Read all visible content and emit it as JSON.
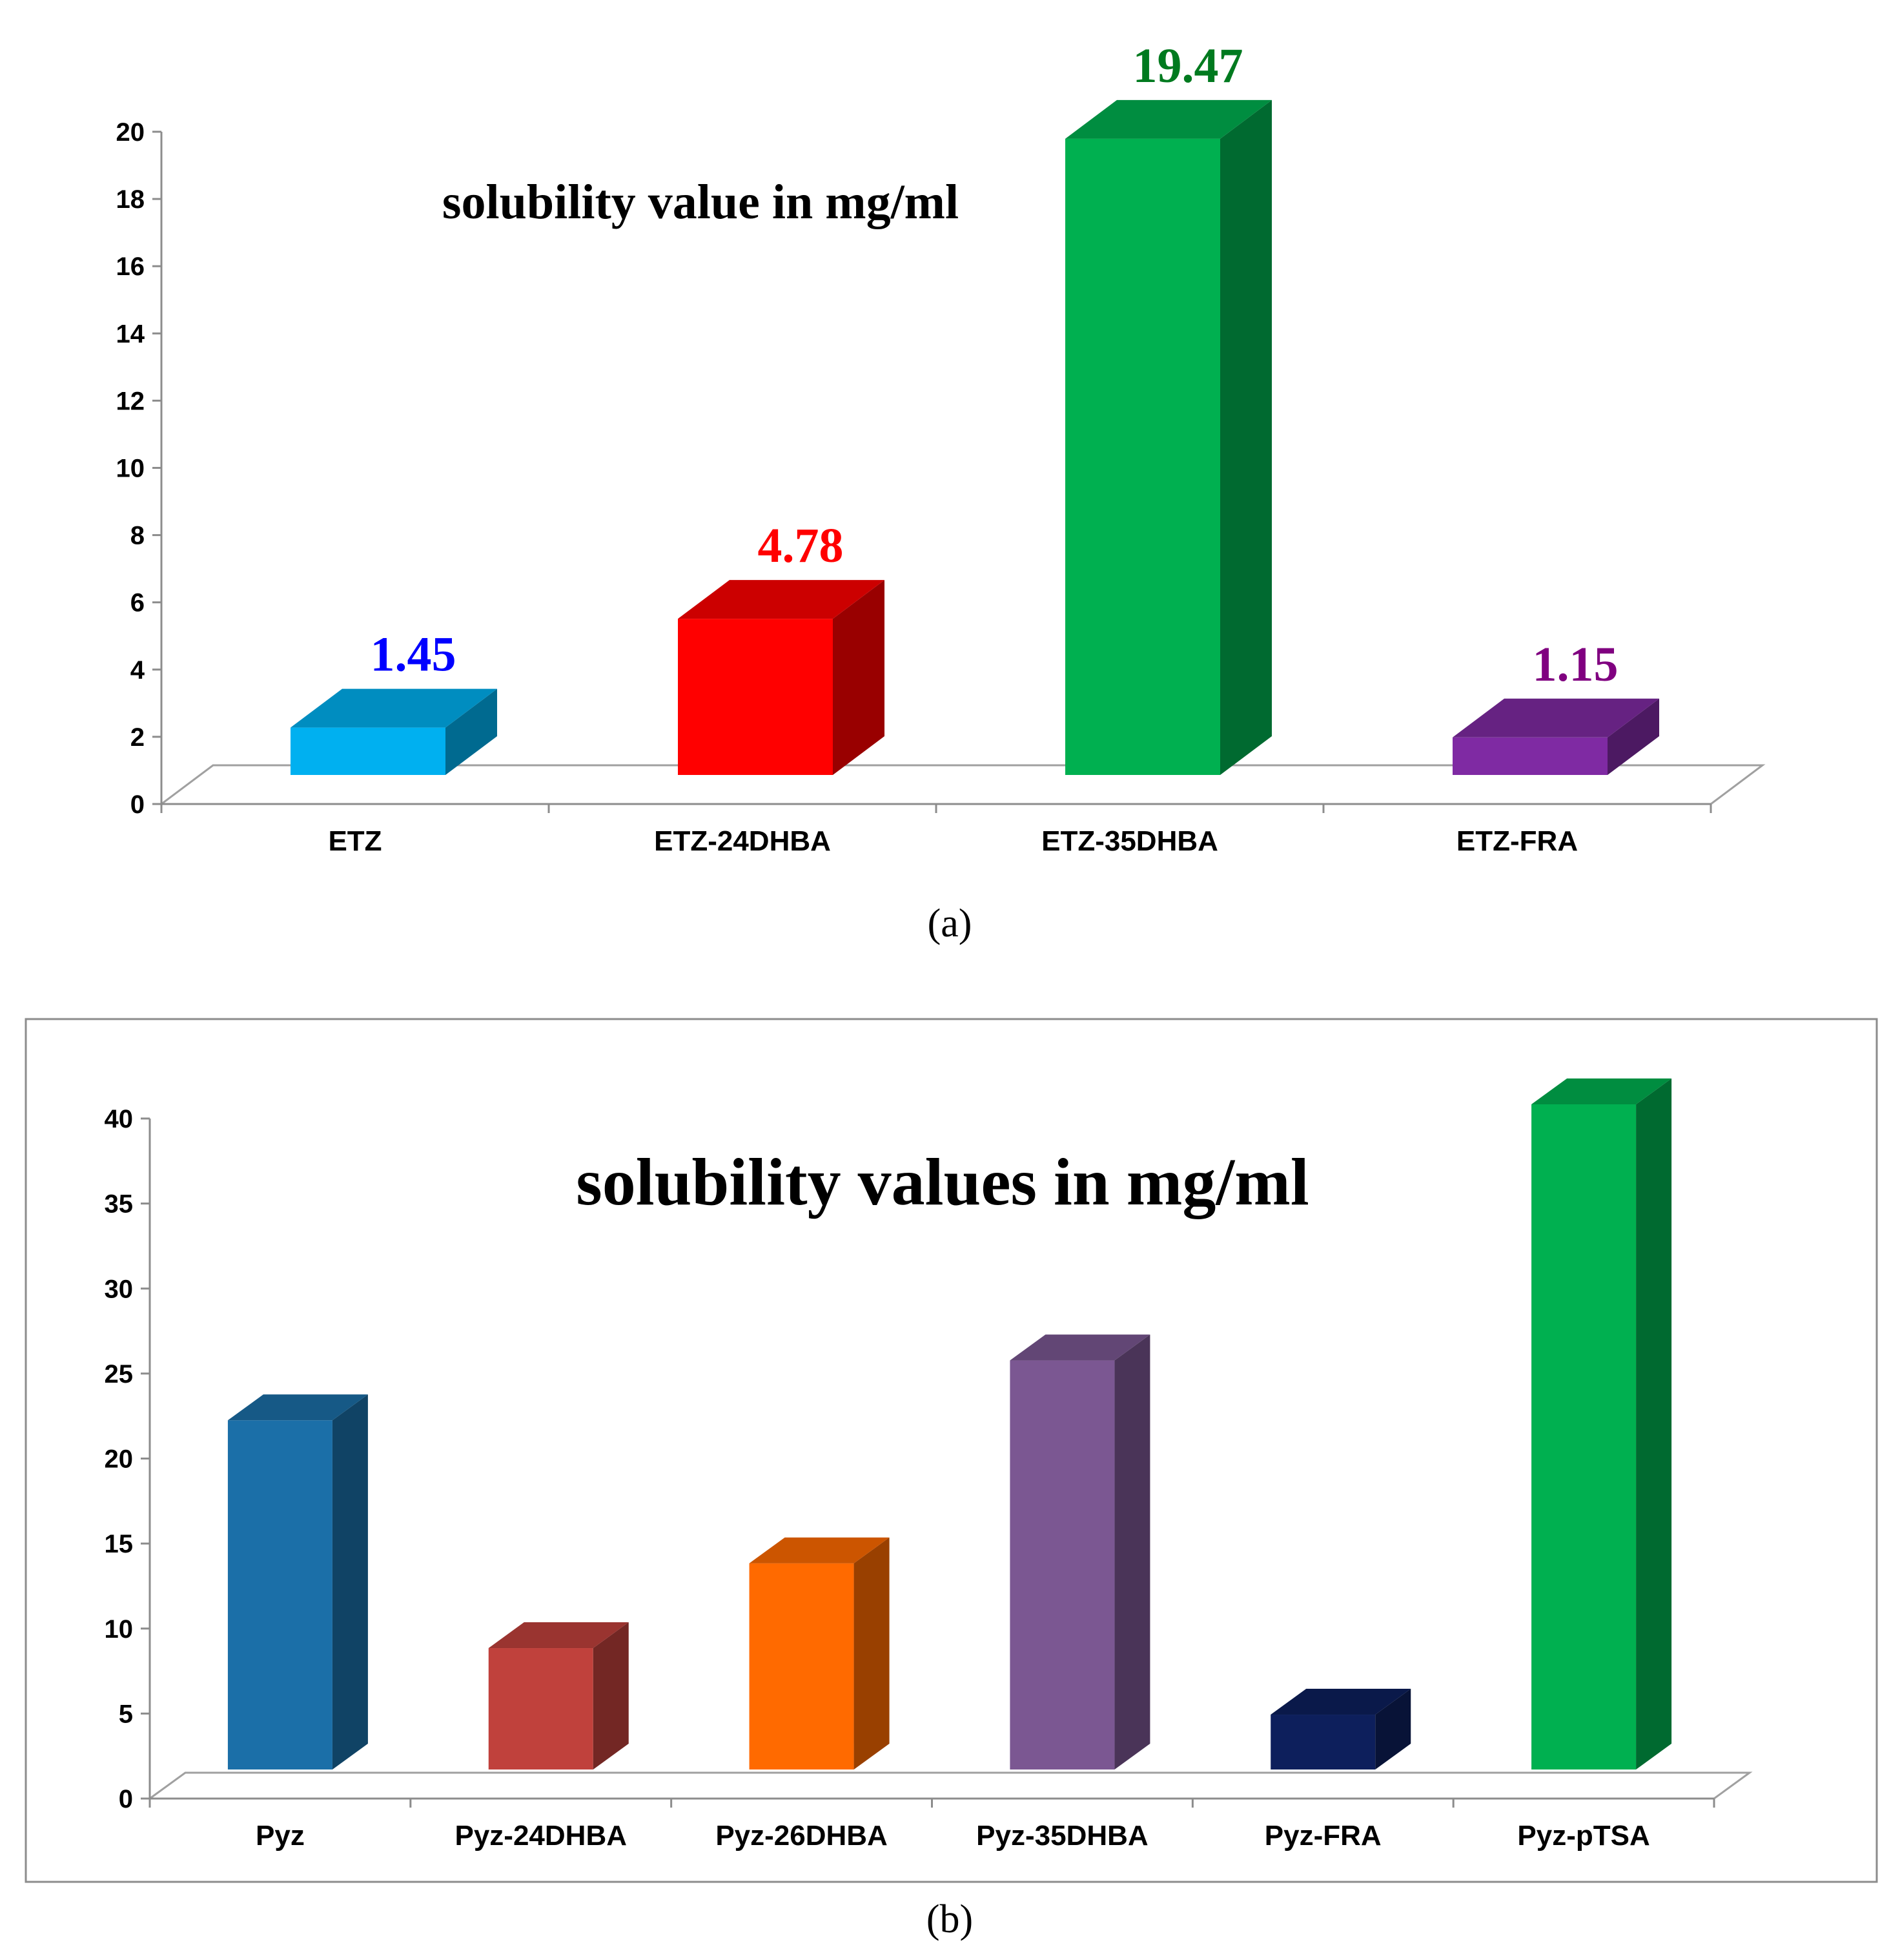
{
  "chart_data": [
    {
      "type": "bar",
      "id": "a",
      "title": "solubility value in mg/ml",
      "caption": "(a)",
      "categories": [
        "ETZ",
        "ETZ-24DHBA",
        "ETZ-35DHBA",
        "ETZ-FRA"
      ],
      "values": [
        1.45,
        4.78,
        19.47,
        1.15
      ],
      "data_labels": [
        "1.45",
        "4.78",
        "19.47",
        "1.15"
      ],
      "colors": [
        "#00b0f0",
        "#ff0000",
        "#00b050",
        "#7f2aa3"
      ],
      "label_colors": [
        "#0000ff",
        "#ff0000",
        "#007a1f",
        "#800080"
      ],
      "y_ticks": [
        "0",
        "2",
        "4",
        "6",
        "8",
        "10",
        "12",
        "14",
        "16",
        "18",
        "20"
      ],
      "ylim": [
        0,
        20
      ],
      "xlabel": "",
      "ylabel": "",
      "grid": false,
      "frame": false
    },
    {
      "type": "bar",
      "id": "b",
      "title": "solubility values in mg/ml",
      "caption": "(b)",
      "categories": [
        "Pyz",
        "Pyz-24DHBA",
        "Pyz-26DHBA",
        "Pyz-35DHBA",
        "Pyz-FRA",
        "Pyz-pTSA"
      ],
      "values": [
        21,
        7.3,
        12.4,
        24.6,
        3.3,
        40
      ],
      "data_labels": [],
      "colors": [
        "#1b6fa8",
        "#c0413c",
        "#ff6a00",
        "#7b5792",
        "#0d1f5c",
        "#00b050"
      ],
      "label_colors": [],
      "y_ticks": [
        "0",
        "5",
        "10",
        "15",
        "20",
        "25",
        "30",
        "35",
        "40"
      ],
      "ylim": [
        0,
        40
      ],
      "xlabel": "",
      "ylabel": "",
      "grid": false,
      "frame": true
    }
  ]
}
